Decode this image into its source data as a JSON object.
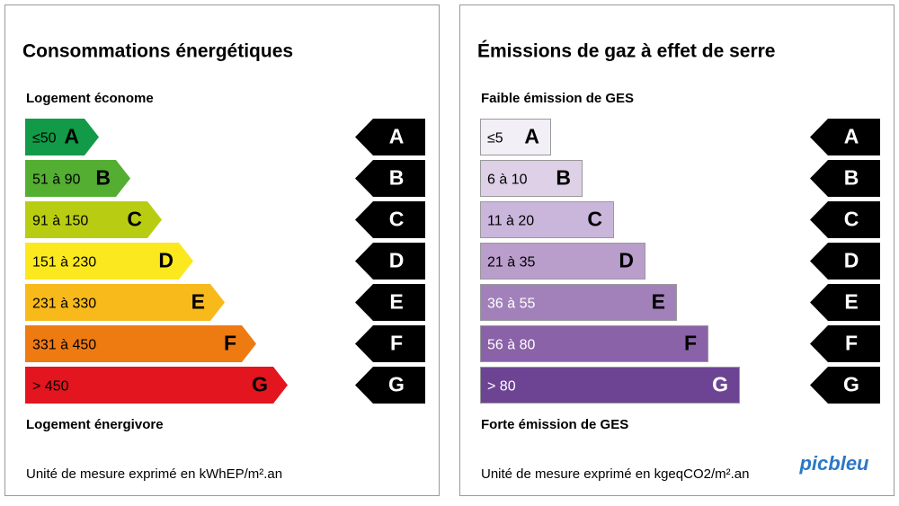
{
  "panels": [
    {
      "title": "Consommations énergétiques",
      "top_label": "Logement économe",
      "bottom_label": "Logement énergivore",
      "unit": "Unité de mesure exprimé en kWhEP/m².an",
      "shape": "arrow",
      "classes": [
        {
          "range": "≤50",
          "letter": "A",
          "color": "#129a48"
        },
        {
          "range": "51 à 90",
          "letter": "B",
          "color": "#53ae32"
        },
        {
          "range": "91 à 150",
          "letter": "C",
          "color": "#b8cd12"
        },
        {
          "range": "151 à 230",
          "letter": "D",
          "color": "#fbe81f"
        },
        {
          "range": "231 à 330",
          "letter": "E",
          "color": "#f8b91a"
        },
        {
          "range": "331 à 450",
          "letter": "F",
          "color": "#ee7a12"
        },
        {
          "range": "> 450",
          "letter": "G",
          "color": "#e3151e"
        }
      ]
    },
    {
      "title": "Émissions de gaz à effet de serre",
      "top_label": "Faible émission de GES",
      "bottom_label": "Forte émission de GES",
      "unit": "Unité de mesure exprimé en kgeqCO2/m².an",
      "shape": "rect",
      "classes": [
        {
          "range": "≤5",
          "letter": "A",
          "color": "#f3eff6"
        },
        {
          "range": "6 à 10",
          "letter": "B",
          "color": "#ddd0e7"
        },
        {
          "range": "11 à 20",
          "letter": "C",
          "color": "#cbb6db"
        },
        {
          "range": "21 à 35",
          "letter": "D",
          "color": "#b99dcb"
        },
        {
          "range": "36 à 55",
          "letter": "E",
          "color": "#a281ba"
        },
        {
          "range": "56 à 80",
          "letter": "F",
          "color": "#8a62a7"
        },
        {
          "range": "> 80",
          "letter": "G",
          "color": "#6c4493"
        }
      ]
    }
  ],
  "logo": "picbleu"
}
